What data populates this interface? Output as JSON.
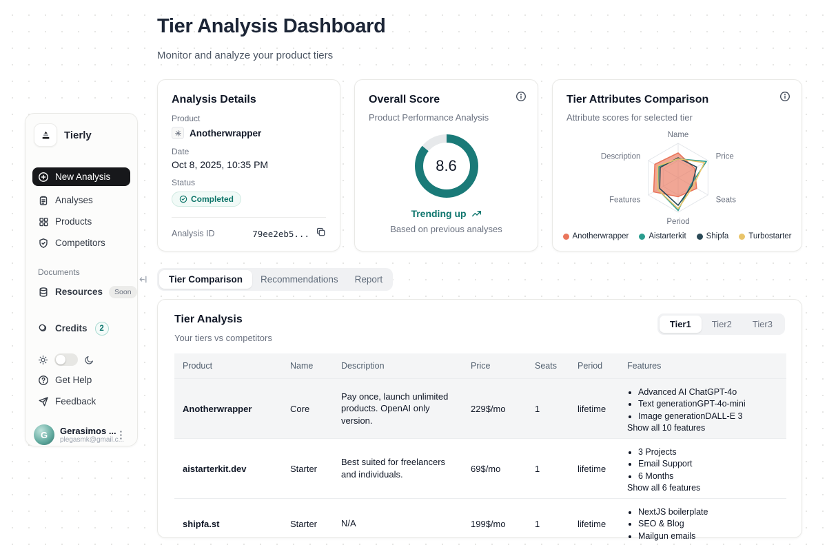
{
  "page": {
    "title": "Tier Analysis Dashboard",
    "subtitle": "Monitor and analyze your product tiers"
  },
  "sidebar": {
    "brand": "Tierly",
    "nav": [
      {
        "label": "New Analysis"
      },
      {
        "label": "Analyses"
      },
      {
        "label": "Products"
      },
      {
        "label": "Competitors"
      }
    ],
    "documents_label": "Documents",
    "resources": {
      "label": "Resources",
      "badge": "Soon"
    },
    "credits": {
      "label": "Credits",
      "badge": "2"
    },
    "get_help": "Get Help",
    "feedback": "Feedback",
    "user": {
      "name": "Gerasimos ...",
      "email": "plegasmk@gmail.c...",
      "initial": "G"
    }
  },
  "analysis_details": {
    "title": "Analysis Details",
    "product_label": "Product",
    "product_name": "Anotherwrapper",
    "date_label": "Date",
    "date_value": "Oct 8, 2025, 10:35 PM",
    "status_label": "Status",
    "status_value": "Completed",
    "analysis_id_label": "Analysis ID",
    "analysis_id_value": "79ee2eb5..."
  },
  "overall_score": {
    "title": "Overall Score",
    "subtitle": "Product Performance Analysis",
    "score": 8.6,
    "trend_label": "Trending up",
    "trend_note": "Based on previous analyses"
  },
  "radar_card": {
    "title": "Tier Attributes Comparison",
    "subtitle": "Attribute scores for selected tier"
  },
  "chart_data": [
    {
      "type": "donut",
      "title": "Overall Score",
      "value": 8.6,
      "max": 10,
      "color": "#1a7a78",
      "track": "#e7e9eb"
    },
    {
      "type": "radar",
      "title": "Tier Attributes Comparison",
      "categories": [
        "Name",
        "Price",
        "Seats",
        "Period",
        "Features",
        "Description"
      ],
      "scale": [
        0,
        1
      ],
      "legend_position": "bottom",
      "series": [
        {
          "name": "Anotherwrapper",
          "color": "#ea765c",
          "fill": true,
          "values": [
            0.72,
            0.55,
            0.62,
            0.55,
            0.82,
            0.78
          ]
        },
        {
          "name": "Aistarterkit",
          "color": "#2a9d8f",
          "fill": false,
          "values": [
            0.55,
            0.95,
            0.42,
            0.95,
            0.68,
            0.65
          ]
        },
        {
          "name": "Shipfa",
          "color": "#2b4a57",
          "fill": false,
          "values": [
            0.58,
            0.62,
            0.46,
            0.8,
            0.62,
            0.6
          ]
        },
        {
          "name": "Turbostarter",
          "color": "#e9c46a",
          "fill": false,
          "values": [
            0.55,
            0.88,
            0.5,
            0.9,
            0.68,
            0.68
          ]
        }
      ]
    }
  ],
  "tabs": [
    {
      "label": "Tier Comparison"
    },
    {
      "label": "Recommendations"
    },
    {
      "label": "Report"
    }
  ],
  "tier_table": {
    "title": "Tier Analysis",
    "subtitle": "Your tiers vs competitors",
    "tier_buttons": [
      "Tier1",
      "Tier2",
      "Tier3"
    ],
    "columns": [
      "Product",
      "Name",
      "Description",
      "Price",
      "Seats",
      "Period",
      "Features"
    ],
    "rows": [
      {
        "product": "Anotherwrapper",
        "name": "Core",
        "description": "Pay once, launch unlimited products. OpenAI only version.",
        "price": "229$/mo",
        "seats": "1",
        "period": "lifetime",
        "features": [
          "Advanced AI ChatGPT-4o",
          "Text generationGPT-4o-mini",
          "Image generationDALL-E 3"
        ],
        "show_all": "Show all 10 features"
      },
      {
        "product": "aistarterkit.dev",
        "name": "Starter",
        "description": "Best suited for freelancers and individuals.",
        "price": "69$/mo",
        "seats": "1",
        "period": "lifetime",
        "features": [
          "3 Projects",
          "Email Support",
          "6 Months"
        ],
        "show_all": "Show all 6 features"
      },
      {
        "product": "shipfa.st",
        "name": "Starter",
        "description": "N/A",
        "price": "199$/mo",
        "seats": "1",
        "period": "lifetime",
        "features": [
          "NextJS boilerplate",
          "SEO & Blog",
          "Mailgun emails"
        ]
      }
    ]
  }
}
